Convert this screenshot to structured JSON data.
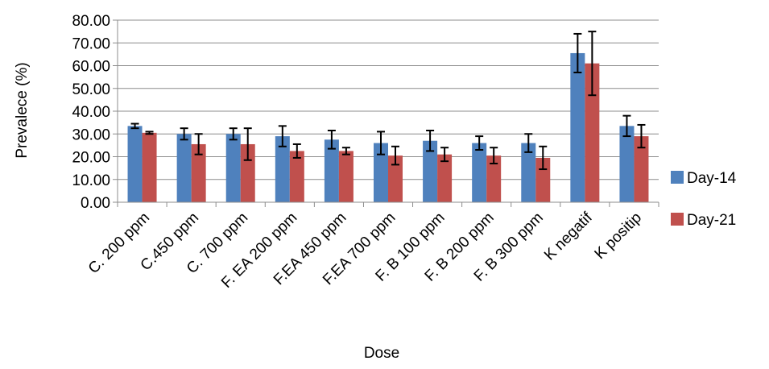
{
  "chart_data": {
    "type": "bar",
    "xlabel": "Dose",
    "ylabel": "Prevalece  (%)",
    "ylim": [
      0,
      80
    ],
    "ytick_step": 10,
    "ytick_labels": [
      "0.00",
      "10.00",
      "20.00",
      "30.00",
      "40.00",
      "50.00",
      "60.00",
      "70.00",
      "80.00"
    ],
    "grid": true,
    "legend_position": "right",
    "categories": [
      "C. 200 ppm",
      "C.450 ppm",
      "C. 700 ppm",
      "F. EA 200 ppm",
      "F.EA 450 ppm",
      "F.EA 700 ppm",
      "F. B 100 ppm",
      "F. B 200 ppm",
      "F. B 300 ppm",
      "K negatif",
      "K positip"
    ],
    "series": [
      {
        "name": "Day-14",
        "color": "#4f81bd",
        "values": [
          33.5,
          30.0,
          30.0,
          29.0,
          27.5,
          26.0,
          27.0,
          26.0,
          26.0,
          65.5,
          33.5
        ],
        "errors": [
          1.0,
          2.5,
          2.5,
          4.5,
          4.0,
          5.0,
          4.5,
          3.0,
          4.0,
          8.5,
          4.5
        ]
      },
      {
        "name": "Day-21",
        "color": "#c0504d",
        "values": [
          30.5,
          25.5,
          25.5,
          22.5,
          22.5,
          20.5,
          21.0,
          20.5,
          19.5,
          61.0,
          29.0
        ],
        "errors": [
          0.5,
          4.5,
          7.0,
          3.0,
          1.5,
          4.0,
          3.0,
          3.5,
          5.0,
          14.0,
          5.0
        ]
      }
    ]
  }
}
